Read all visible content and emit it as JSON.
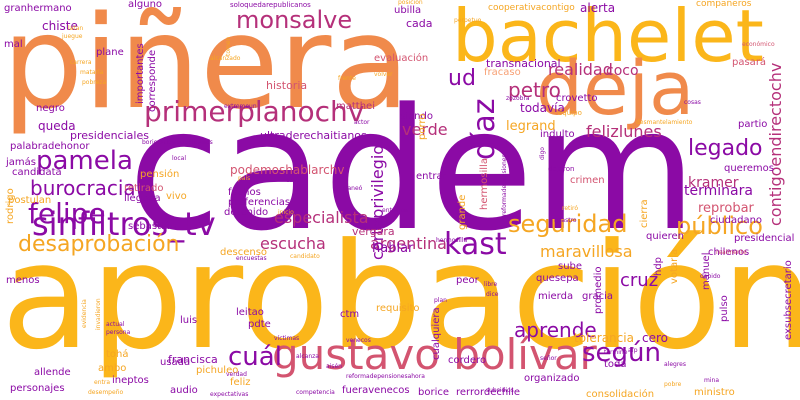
{
  "palette": {
    "orange": "#f5a623",
    "coral": "#f08a4b",
    "purple": "#8b0aa5",
    "magenta": "#b5307a",
    "rose": "#d35470",
    "pink": "#e06b8f",
    "gold": "#fbb61a",
    "peach": "#f7a074",
    "light": "#f2b49a"
  },
  "words": [
    {
      "text": "cadem",
      "color": "purple"
    },
    {
      "text": "aprobación",
      "color": "gold"
    },
    {
      "text": "piñera",
      "color": "coral"
    },
    {
      "text": "bachelet",
      "color": "gold"
    },
    {
      "text": "deja",
      "color": "coral"
    },
    {
      "text": "gustavo bolívar",
      "color": "rose"
    },
    {
      "text": "monsalve",
      "color": "magenta"
    },
    {
      "text": "primerplanochv",
      "color": "magenta"
    },
    {
      "text": "pamela",
      "color": "purple"
    },
    {
      "text": "felipe",
      "color": "purple"
    },
    {
      "text": "sinfiltros_tv",
      "color": "purple"
    },
    {
      "text": "kast",
      "color": "purple"
    },
    {
      "text": "burocracia",
      "color": "purple"
    },
    {
      "text": "desaprobación",
      "color": "orange"
    },
    {
      "text": "díaz",
      "color": "purple"
    },
    {
      "text": "según",
      "color": "purple"
    },
    {
      "text": "cuál",
      "color": "purple"
    },
    {
      "text": "público",
      "color": "orange"
    },
    {
      "text": "seguridad",
      "color": "orange"
    },
    {
      "text": "legado",
      "color": "purple"
    },
    {
      "text": "aprende",
      "color": "purple"
    },
    {
      "text": "petro",
      "color": "magenta"
    },
    {
      "text": "ud",
      "color": "purple"
    },
    {
      "text": "realidad",
      "color": "magenta"
    },
    {
      "text": "coco",
      "color": "magenta"
    },
    {
      "text": "maravillosa",
      "color": "orange"
    },
    {
      "text": "argentina",
      "color": "magenta"
    },
    {
      "text": "escucha",
      "color": "magenta"
    },
    {
      "text": "cruz",
      "color": "purple"
    },
    {
      "text": "especialista",
      "color": "magenta"
    },
    {
      "text": "verde",
      "color": "magenta"
    },
    {
      "text": "felizlunes",
      "color": "magenta"
    },
    {
      "text": "corteprivilegios",
      "color": "purple"
    },
    {
      "text": "contigoendirectochv",
      "color": "magenta"
    },
    {
      "text": "kramer",
      "color": "magenta"
    },
    {
      "text": "terminara",
      "color": "purple"
    },
    {
      "text": "reprobar",
      "color": "rose"
    },
    {
      "text": "hablar",
      "color": "purple"
    },
    {
      "text": "podemoshablarchv",
      "color": "rose"
    },
    {
      "text": "legrand",
      "color": "orange"
    },
    {
      "text": "queda",
      "color": "purple"
    },
    {
      "text": "vergara",
      "color": "magenta"
    },
    {
      "text": "historia",
      "color": "rose"
    },
    {
      "text": "francisca",
      "color": "purple"
    },
    {
      "text": "tolerancia",
      "color": "orange"
    },
    {
      "text": "cero",
      "color": "purple"
    },
    {
      "text": "ultraderechaitianos",
      "color": "purple"
    },
    {
      "text": "presidenciales",
      "color": "purple"
    },
    {
      "text": "transnacional",
      "color": "purple"
    },
    {
      "text": "todavía",
      "color": "purple"
    },
    {
      "text": "alerta",
      "color": "purple"
    },
    {
      "text": "chiste",
      "color": "purple"
    },
    {
      "text": "cada",
      "color": "purple"
    },
    {
      "text": "ubilla",
      "color": "purple"
    },
    {
      "text": "granhermano",
      "color": "purple"
    },
    {
      "text": "negro",
      "color": "purple"
    },
    {
      "text": "palabradehonor",
      "color": "purple"
    },
    {
      "text": "plane",
      "color": "purple"
    },
    {
      "text": "importantes",
      "color": "purple"
    },
    {
      "text": "corresponde",
      "color": "purple"
    },
    {
      "text": "matthei",
      "color": "magenta"
    },
    {
      "text": "siendo",
      "color": "purple"
    },
    {
      "text": "evaluación",
      "color": "rose"
    },
    {
      "text": "fracaso",
      "color": "peach"
    },
    {
      "text": "crovetto",
      "color": "purple"
    },
    {
      "text": "indulto",
      "color": "purple"
    },
    {
      "text": "entrar",
      "color": "purple"
    },
    {
      "text": "crimen",
      "color": "rose"
    },
    {
      "text": "hermosilla",
      "color": "rose"
    },
    {
      "text": "ciudadano",
      "color": "purple"
    },
    {
      "text": "presidencial",
      "color": "purple"
    },
    {
      "text": "chilenos",
      "color": "purple"
    },
    {
      "text": "pasará",
      "color": "rose"
    },
    {
      "text": "partio",
      "color": "purple"
    },
    {
      "text": "quieren",
      "color": "purple"
    },
    {
      "text": "queremos",
      "color": "purple"
    },
    {
      "text": "jamás",
      "color": "purple"
    },
    {
      "text": "candidata",
      "color": "purple"
    },
    {
      "text": "fachos",
      "color": "purple"
    },
    {
      "text": "preferencias",
      "color": "purple"
    },
    {
      "text": "detenido",
      "color": "purple"
    },
    {
      "text": "retirado",
      "color": "rose"
    },
    {
      "text": "llegada",
      "color": "purple"
    },
    {
      "text": "pensión",
      "color": "orange"
    },
    {
      "text": "sebastián",
      "color": "purple"
    },
    {
      "text": "postulan",
      "color": "orange"
    },
    {
      "text": "rodrigo",
      "color": "orange"
    },
    {
      "text": "descenso",
      "color": "orange"
    },
    {
      "text": "leitao",
      "color": "purple"
    },
    {
      "text": "pdte",
      "color": "purple"
    },
    {
      "text": "requisito",
      "color": "orange"
    },
    {
      "text": "ctm",
      "color": "purple"
    },
    {
      "text": "peor",
      "color": "purple"
    },
    {
      "text": "quesepa",
      "color": "purple"
    },
    {
      "text": "mierda",
      "color": "purple"
    },
    {
      "text": "gracia",
      "color": "purple"
    },
    {
      "text": "sube",
      "color": "purple"
    },
    {
      "text": "promedio",
      "color": "purple"
    },
    {
      "text": "hdp",
      "color": "purple"
    },
    {
      "text": "manuel",
      "color": "purple"
    },
    {
      "text": "pulso",
      "color": "purple"
    },
    {
      "text": "exsubsecretario",
      "color": "purple"
    },
    {
      "text": "usada",
      "color": "purple"
    },
    {
      "text": "tohá",
      "color": "orange"
    },
    {
      "text": "pichuleo",
      "color": "orange"
    },
    {
      "text": "ineptos",
      "color": "purple"
    },
    {
      "text": "allende",
      "color": "purple"
    },
    {
      "text": "personajes",
      "color": "purple"
    },
    {
      "text": "ambo",
      "color": "orange"
    },
    {
      "text": "audio",
      "color": "purple"
    },
    {
      "text": "feliz",
      "color": "orange"
    },
    {
      "text": "organizado",
      "color": "purple"
    },
    {
      "text": "cordero",
      "color": "purple"
    },
    {
      "text": "consolidación",
      "color": "orange"
    },
    {
      "text": "fueravenecos",
      "color": "purple"
    },
    {
      "text": "borice",
      "color": "purple"
    },
    {
      "text": "rerrordechile",
      "color": "purple"
    },
    {
      "text": "ministro",
      "color": "orange"
    },
    {
      "text": "toda",
      "color": "purple"
    },
    {
      "text": "cualquiera",
      "color": "purple"
    },
    {
      "text": "menos",
      "color": "purple"
    },
    {
      "text": "grande",
      "color": "orange"
    },
    {
      "text": "votaría",
      "color": "orange"
    },
    {
      "text": "cierra",
      "color": "orange"
    },
    {
      "text": "alguno",
      "color": "purple"
    },
    {
      "text": "mal",
      "color": "purple"
    },
    {
      "text": "luis",
      "color": "purple"
    },
    {
      "text": "vivo",
      "color": "orange"
    },
    {
      "text": "porro",
      "color": "orange"
    },
    {
      "text": "compañeros",
      "color": "orange"
    },
    {
      "text": "cooperativacontigo",
      "color": "orange"
    },
    {
      "text": "soloquedarepublicanos",
      "color": "purple"
    },
    {
      "text": "posición",
      "color": "orange"
    },
    {
      "text": "perpetuo",
      "color": "orange"
    },
    {
      "text": "económico",
      "color": "rose"
    },
    {
      "text": "reformadepensiones",
      "color": "purple"
    },
    {
      "text": "dejaron",
      "color": "purple"
    },
    {
      "text": "digo",
      "color": "purple"
    },
    {
      "text": "retiró",
      "color": "orange"
    },
    {
      "text": "extremeun",
      "color": "purple"
    },
    {
      "text": "desmantelamiento",
      "color": "orange"
    },
    {
      "text": "equipo",
      "color": "orange"
    },
    {
      "text": "cosas",
      "color": "purple"
    },
    {
      "text": "actor",
      "color": "purple"
    },
    {
      "text": "frente",
      "color": "orange"
    },
    {
      "text": "latan",
      "color": "orange"
    },
    {
      "text": "juegue",
      "color": "orange"
    },
    {
      "text": "zozobra",
      "color": "purple"
    },
    {
      "text": "local",
      "color": "purple"
    },
    {
      "text": "planeó",
      "color": "purple"
    },
    {
      "text": "caso",
      "color": "purple"
    },
    {
      "text": "país",
      "color": "orange"
    },
    {
      "text": "entraran",
      "color": "purple"
    },
    {
      "text": "encuestas",
      "color": "purple"
    },
    {
      "text": "candidato",
      "color": "orange"
    },
    {
      "text": "víctimas",
      "color": "purple"
    },
    {
      "text": "alcanza",
      "color": "purple"
    },
    {
      "text": "competencia",
      "color": "purple"
    },
    {
      "text": "expectativas",
      "color": "purple"
    },
    {
      "text": "verdad",
      "color": "purple"
    },
    {
      "text": "desempeño",
      "color": "orange"
    },
    {
      "text": "entra",
      "color": "orange"
    },
    {
      "text": "persona",
      "color": "purple"
    },
    {
      "text": "actual",
      "color": "purple"
    },
    {
      "text": "alegres",
      "color": "purple"
    },
    {
      "text": "pobre",
      "color": "orange"
    },
    {
      "text": "mina",
      "color": "purple"
    },
    {
      "text": "afp",
      "color": "purple"
    },
    {
      "text": "termine",
      "color": "purple"
    },
    {
      "text": "dice",
      "color": "purple"
    },
    {
      "text": "libre",
      "color": "purple"
    },
    {
      "text": "plan",
      "color": "purple"
    },
    {
      "text": "realmente",
      "color": "rose"
    },
    {
      "text": "dabido",
      "color": "purple"
    },
    {
      "text": "señor",
      "color": "purple"
    },
    {
      "text": "rjcastro",
      "color": "purple"
    },
    {
      "text": "subsidios",
      "color": "purple"
    },
    {
      "text": "evidencia",
      "color": "orange"
    },
    {
      "text": "invadieron",
      "color": "orange"
    },
    {
      "text": "matarla",
      "color": "orange"
    },
    {
      "text": "pobreza",
      "color": "orange"
    },
    {
      "text": "carrera",
      "color": "orange"
    },
    {
      "text": "tomen",
      "color": "orange"
    },
    {
      "text": "alcanzado",
      "color": "orange"
    },
    {
      "text": "volver",
      "color": "orange"
    },
    {
      "text": "aisén",
      "color": "purple"
    },
    {
      "text": "reformadepensionesahora",
      "color": "purple"
    },
    {
      "text": "hermosilla",
      "color": "purple"
    },
    {
      "text": "inicio",
      "color": "orange"
    },
    {
      "text": "venecos",
      "color": "purple"
    },
    {
      "text": "boricesdesrepublicanos",
      "color": "purple"
    }
  ]
}
